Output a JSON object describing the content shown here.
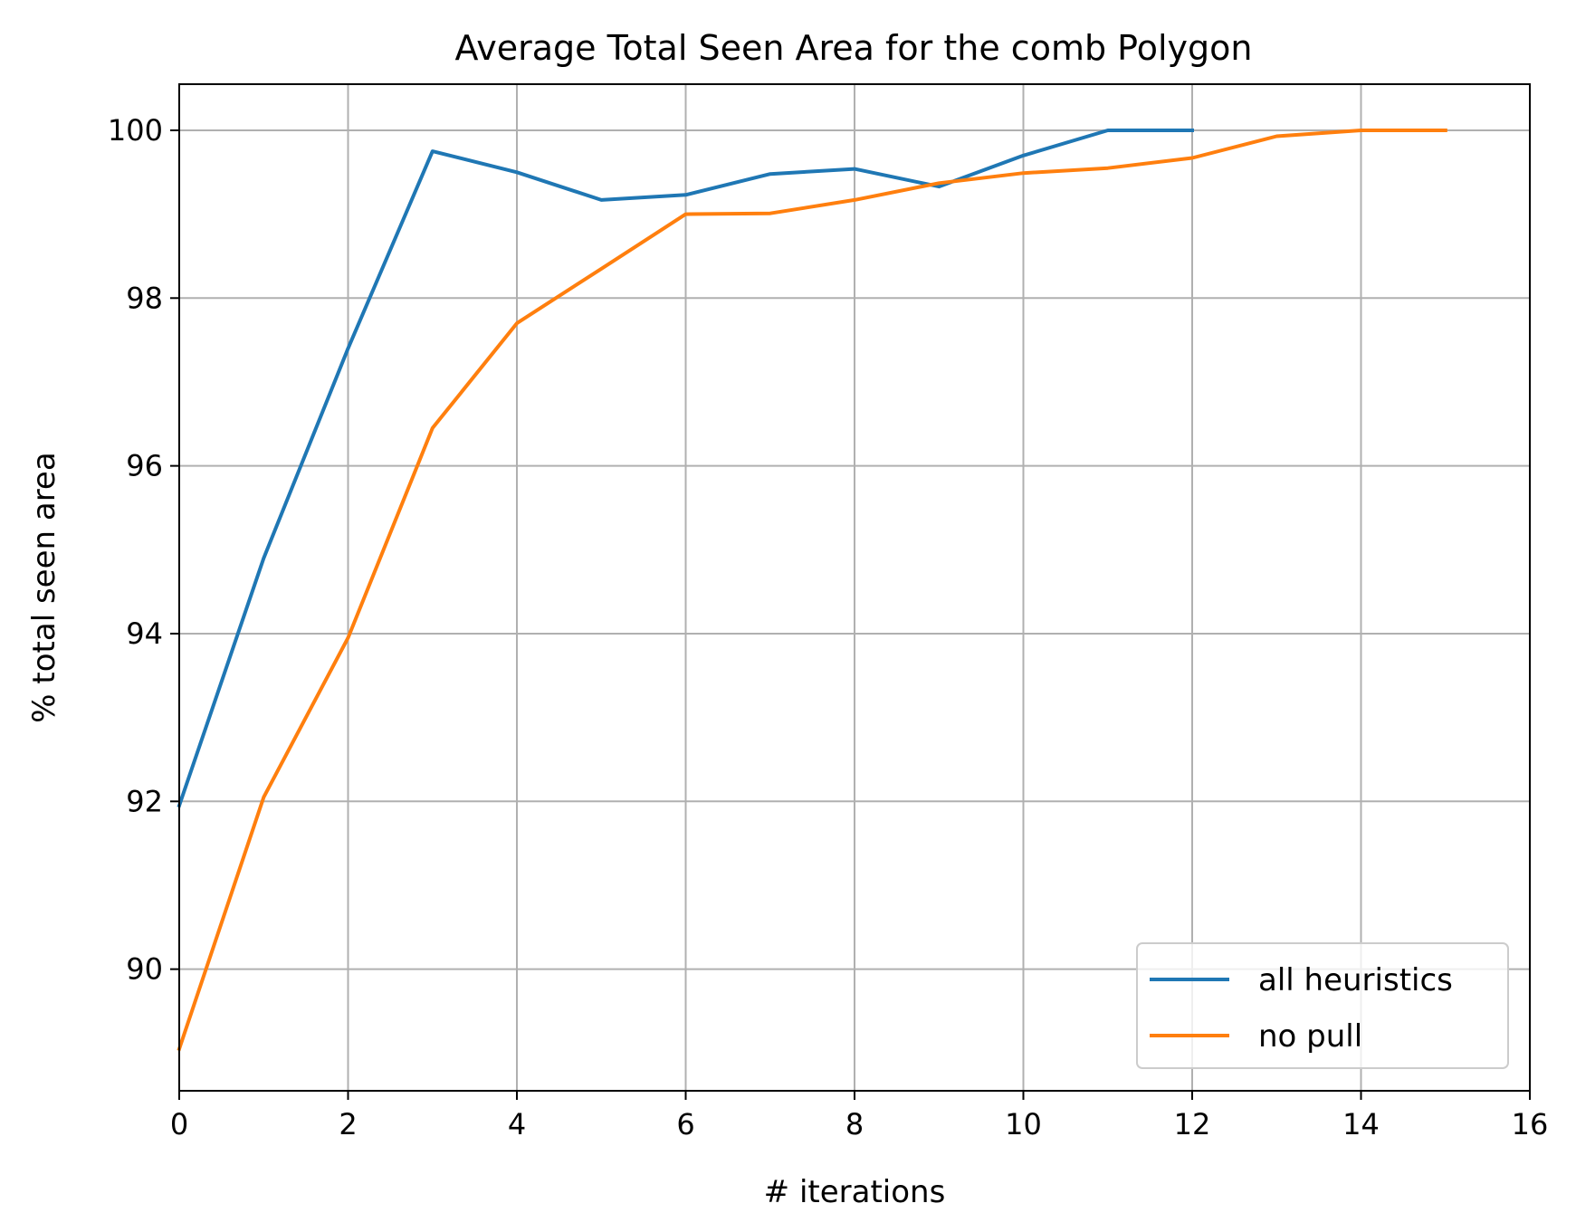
{
  "chart_data": {
    "type": "line",
    "title": "Average Total Seen Area for the comb Polygon",
    "xlabel": "# iterations",
    "ylabel": "% total seen area",
    "xlim": [
      0,
      16
    ],
    "ylim": [
      88.55,
      100.55
    ],
    "xticks": [
      0,
      2,
      4,
      6,
      8,
      10,
      12,
      14,
      16
    ],
    "yticks": [
      90,
      92,
      94,
      96,
      98,
      100
    ],
    "grid": true,
    "legend_position": "lower-right",
    "series": [
      {
        "name": "all heuristics",
        "color": "#1f77b4",
        "x": [
          0,
          1,
          2,
          3,
          4,
          5,
          6,
          7,
          8,
          9,
          10,
          11,
          12
        ],
        "y": [
          91.95,
          94.9,
          97.4,
          99.75,
          99.5,
          99.17,
          99.23,
          99.48,
          99.54,
          99.33,
          99.7,
          100.0,
          100.0
        ]
      },
      {
        "name": "no pull",
        "color": "#ff7f0e",
        "x": [
          0,
          1,
          2,
          3,
          4,
          5,
          6,
          7,
          8,
          9,
          10,
          11,
          12,
          13,
          14,
          15
        ],
        "y": [
          89.05,
          92.05,
          93.95,
          96.45,
          97.7,
          98.35,
          99.0,
          99.01,
          99.17,
          99.37,
          99.49,
          99.55,
          99.67,
          99.93,
          100.0,
          100.0
        ]
      }
    ]
  }
}
